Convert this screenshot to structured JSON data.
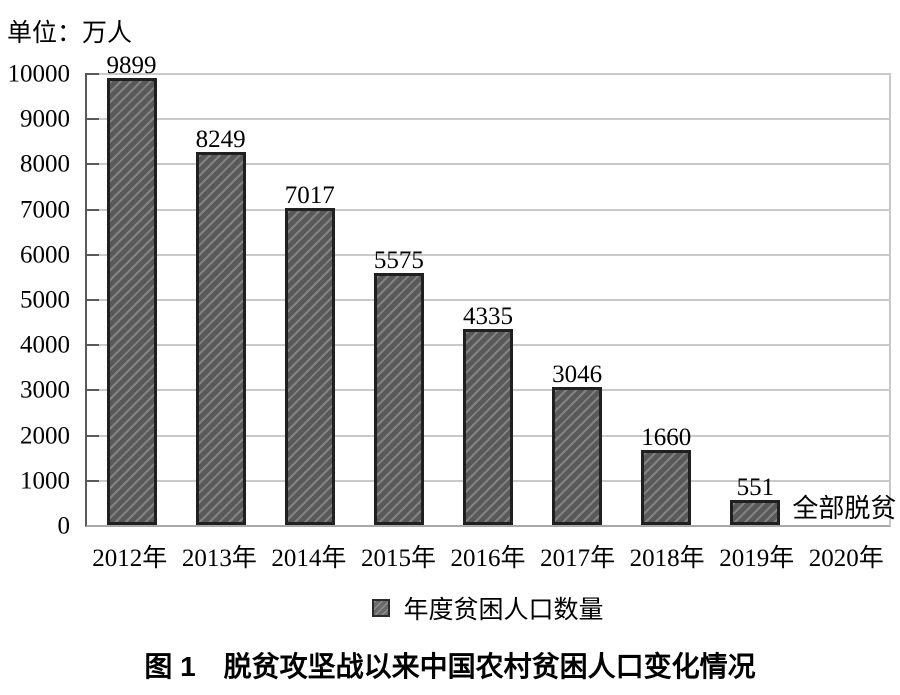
{
  "unit_label": "单位：万人",
  "legend": {
    "label": "年度贫困人口数量"
  },
  "caption": "图 1　脱贫攻坚战以来中国农村贫困人口变化情况",
  "colors": {
    "bar_fill": "#595959",
    "bar_hatch_line": "#8a8a8a",
    "bar_border": "#202020",
    "gridline": "#c9c9c9",
    "y_axis": "#5a5a5a",
    "x_axis": "#a8a8a8",
    "text": "#000000"
  },
  "chart_data": {
    "type": "bar",
    "title": "图 1　脱贫攻坚战以来中国农村贫困人口变化情况",
    "unit": "单位：万人",
    "categories": [
      "2012年",
      "2013年",
      "2014年",
      "2015年",
      "2016年",
      "2017年",
      "2018年",
      "2019年",
      "2020年"
    ],
    "values": [
      9899,
      8249,
      7017,
      5575,
      4335,
      3046,
      1660,
      551,
      null
    ],
    "bar_labels": [
      "9899",
      "8249",
      "7017",
      "5575",
      "4335",
      "3046",
      "1660",
      "551"
    ],
    "annotation_2020": "全部脱贫",
    "legend": [
      "年度贫困人口数量"
    ],
    "legend_position": "bottom",
    "ylim": [
      0,
      10000
    ],
    "yticks": [
      0,
      1000,
      2000,
      3000,
      4000,
      5000,
      6000,
      7000,
      8000,
      9000,
      10000
    ],
    "grid": true,
    "bar_style": "dark-gray-diagonal-hatch"
  }
}
